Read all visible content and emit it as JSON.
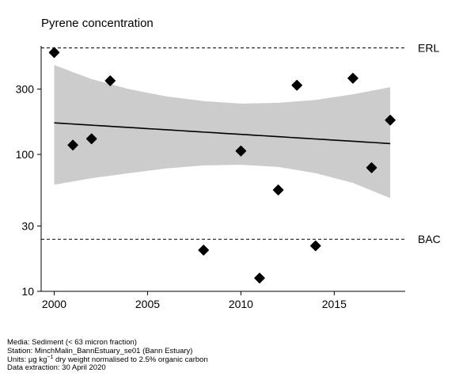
{
  "chart_data": {
    "type": "scatter",
    "title": "Pyrene concentration",
    "xlabel": "",
    "ylabel": "",
    "xlim": [
      1999.3,
      2018.8
    ],
    "ylim": [
      10,
      620
    ],
    "yscale": "log",
    "x_ticks": [
      2000,
      2005,
      2010,
      2015
    ],
    "y_ticks": [
      10,
      30,
      100,
      300
    ],
    "grid": false,
    "points": [
      {
        "x": 2000,
        "y": 555
      },
      {
        "x": 2001,
        "y": 117
      },
      {
        "x": 2002,
        "y": 130
      },
      {
        "x": 2003,
        "y": 345
      },
      {
        "x": 2008,
        "y": 20
      },
      {
        "x": 2010,
        "y": 106
      },
      {
        "x": 2011,
        "y": 12.5
      },
      {
        "x": 2012,
        "y": 55
      },
      {
        "x": 2013,
        "y": 320
      },
      {
        "x": 2014,
        "y": 21.5
      },
      {
        "x": 2016,
        "y": 360
      },
      {
        "x": 2017,
        "y": 80
      },
      {
        "x": 2018,
        "y": 178
      }
    ],
    "trend": {
      "x": [
        2000,
        2018
      ],
      "y": [
        170,
        120
      ]
    },
    "confidence_band": {
      "x": [
        2000,
        2002,
        2004,
        2006,
        2008,
        2010,
        2012,
        2014,
        2016,
        2018
      ],
      "upper": [
        450,
        355,
        300,
        265,
        245,
        235,
        238,
        250,
        275,
        310
      ],
      "lower": [
        60,
        67,
        73,
        79,
        83,
        84,
        81,
        73,
        62,
        48
      ]
    },
    "reference_lines": [
      {
        "label": "ERL",
        "y": 600
      },
      {
        "label": "BAC",
        "y": 24
      }
    ],
    "colors": {
      "points": "#000000",
      "band": "#cccccc",
      "trend": "#000000"
    }
  },
  "footer": {
    "media": "Media: Sediment (< 63 micron fraction)",
    "station": "Station: MinchMalin_BannEstuary_se01 (Bann Estuary)",
    "units_prefix": "Units:  µg kg",
    "units_exp": "−1",
    "units_suffix": " dry weight normalised to 2.5% organic carbon",
    "extraction": "Data extraction: 30 April 2020"
  }
}
